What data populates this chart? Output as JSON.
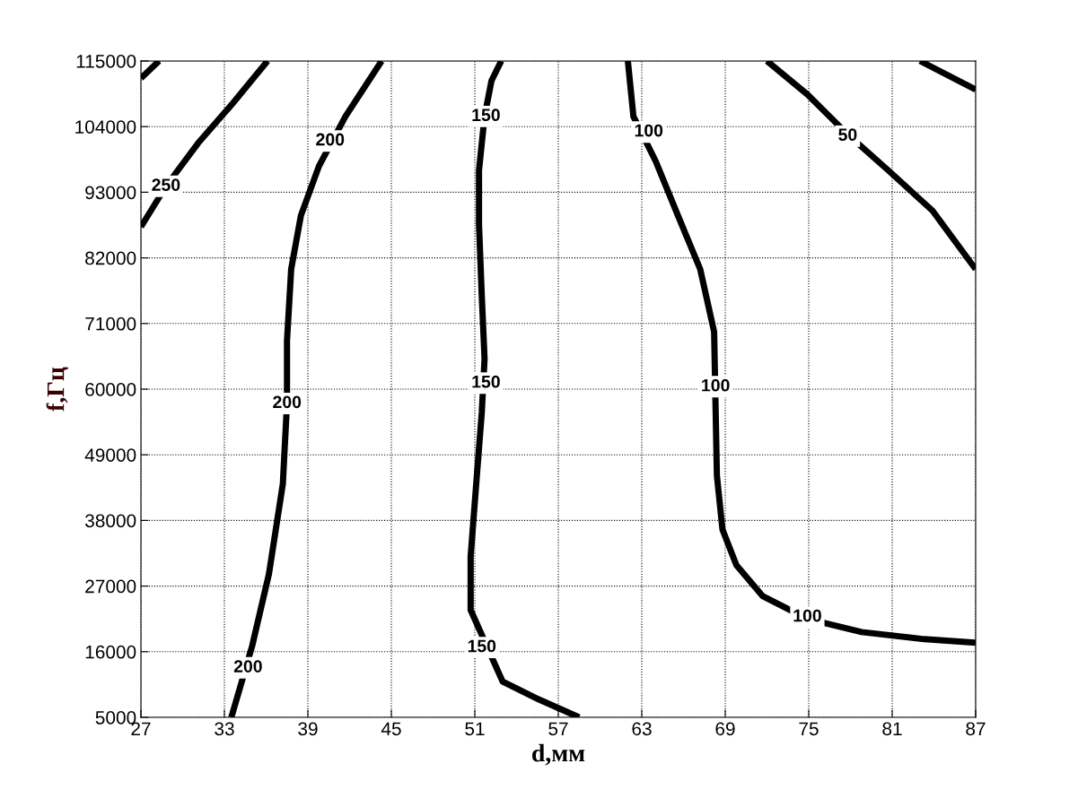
{
  "chart_data": {
    "type": "line",
    "xlabel": "d,мм",
    "ylabel": "f,Гц",
    "xlim": [
      27,
      87
    ],
    "xticks": [
      27,
      33,
      39,
      45,
      51,
      57,
      63,
      69,
      75,
      81,
      87
    ],
    "ylim": [
      5000,
      115000
    ],
    "yticks": [
      5000,
      16000,
      27000,
      38000,
      49000,
      60000,
      71000,
      82000,
      93000,
      104000,
      115000
    ],
    "grid": true,
    "marker": "none",
    "line_style": "solid",
    "series": [
      {
        "color": "#000000",
        "x": [
          27,
          28.3
        ],
        "values": [
          112100,
          115000
        ]
      },
      {
        "color": "#000000",
        "x": [
          27,
          28.8,
          31.1,
          33.6,
          36.1
        ],
        "values": [
          87200,
          94000,
          101200,
          107900,
          115000
        ]
      },
      {
        "color": "#000000",
        "x": [
          33.5,
          35.0,
          36.2,
          37.2,
          37.5,
          37.5,
          37.8,
          38.5,
          39.8,
          41.7,
          44.3
        ],
        "values": [
          5000,
          17000,
          29000,
          44100,
          57600,
          68100,
          80100,
          89100,
          97400,
          105700,
          115000
        ]
      },
      {
        "color": "#000000",
        "x": [
          58.5,
          55.6,
          53.0,
          50.7,
          50.7,
          51.1,
          51.5,
          51.7,
          51.5,
          51.3,
          51.3,
          51.7,
          52.2,
          52.9
        ],
        "values": [
          5000,
          8000,
          11000,
          23000,
          32000,
          44100,
          56100,
          65100,
          75600,
          87600,
          96700,
          105700,
          111700,
          115000
        ]
      },
      {
        "color": "#000000",
        "x": [
          62.0,
          62.4,
          64.0,
          65.6,
          67.2,
          68.2,
          68.4,
          68.8,
          69.8,
          71.7,
          74.9,
          78.8,
          83.3,
          87
        ],
        "values": [
          115000,
          105700,
          98200,
          89100,
          80100,
          69600,
          45500,
          36500,
          30500,
          25300,
          21500,
          19300,
          18100,
          17500
        ]
      },
      {
        "color": "#000000",
        "x": [
          72.0,
          74.9,
          77.8,
          80.7,
          83.9,
          87
        ],
        "values": [
          115000,
          109400,
          102700,
          96700,
          89900,
          80100
        ]
      },
      {
        "color": "#000000",
        "x": [
          83.0,
          87
        ],
        "values": [
          115000,
          110200
        ]
      }
    ],
    "annotations": [
      {
        "text": "250",
        "x": 28.8,
        "y": 94000
      },
      {
        "text": "200",
        "x": 40.6,
        "y": 101600
      },
      {
        "text": "200",
        "x": 37.5,
        "y": 57600
      },
      {
        "text": "200",
        "x": 34.7,
        "y": 13300
      },
      {
        "text": "150",
        "x": 51.8,
        "y": 105700
      },
      {
        "text": "150",
        "x": 51.8,
        "y": 61000
      },
      {
        "text": "150",
        "x": 51.5,
        "y": 16700
      },
      {
        "text": "100",
        "x": 63.5,
        "y": 103100
      },
      {
        "text": "100",
        "x": 68.3,
        "y": 60400
      },
      {
        "text": "100",
        "x": 74.9,
        "y": 21800
      },
      {
        "text": "50",
        "x": 77.8,
        "y": 102400
      }
    ]
  }
}
